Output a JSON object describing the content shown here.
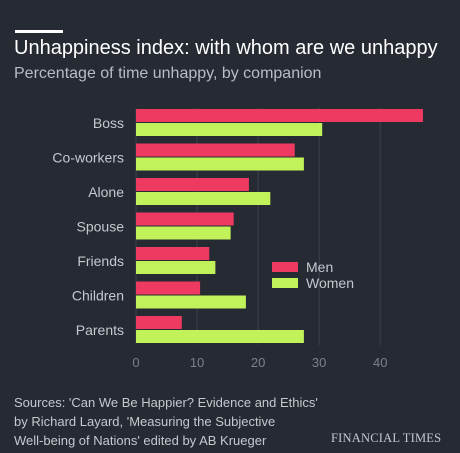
{
  "title": "Unhappiness index: with whom are we unhappy",
  "subtitle": "Percentage of time unhappy, by companion",
  "chart_data": {
    "type": "bar",
    "orientation": "horizontal",
    "categories": [
      "Boss",
      "Co-workers",
      "Alone",
      "Spouse",
      "Friends",
      "Children",
      "Parents"
    ],
    "series": [
      {
        "name": "Men",
        "color": "#ee3a60",
        "values": [
          47,
          26,
          18.5,
          16,
          12,
          10.5,
          7.5
        ]
      },
      {
        "name": "Women",
        "color": "#c2f25a",
        "values": [
          30.5,
          27.5,
          22,
          15.5,
          13,
          18,
          27.5
        ]
      }
    ],
    "xlim": [
      0,
      47.5
    ],
    "xticks": [
      0,
      10,
      20,
      30,
      40
    ],
    "legend_position": "right-middle"
  },
  "source_lines": [
    "Sources: 'Can We Be Happier? Evidence and Ethics'",
    "by Richard Layard, 'Measuring the Subjective",
    "Well-being of Nations' edited by AB Krueger"
  ],
  "brand": "FINANCIAL TIMES"
}
